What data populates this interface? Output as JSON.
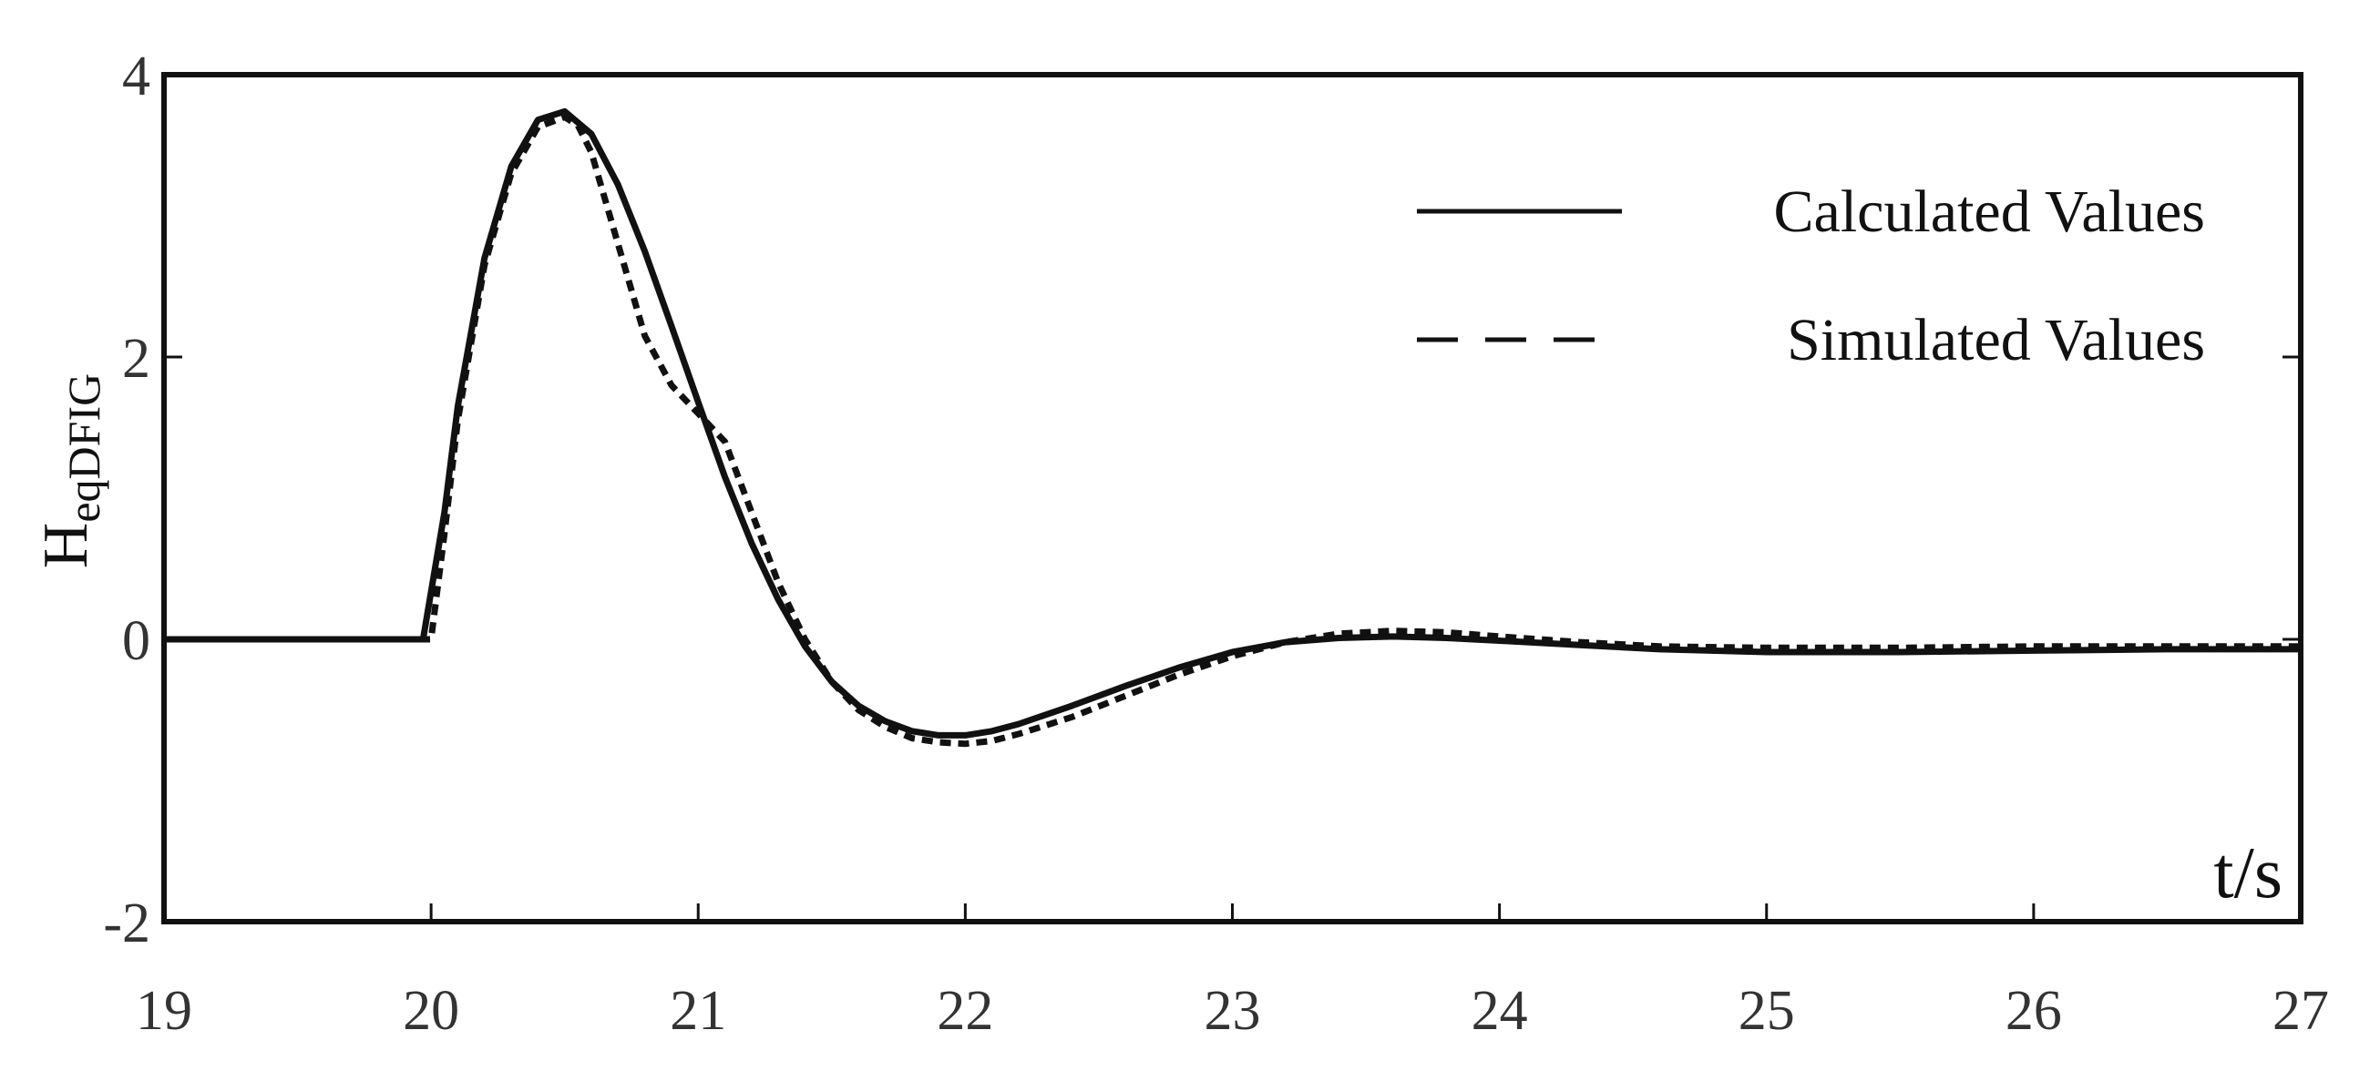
{
  "chart_data": {
    "type": "line",
    "title": "",
    "xlabel": "t/s",
    "ylabel": {
      "main": "H",
      "subscript": "eqDFIG"
    },
    "xlim": [
      19,
      27
    ],
    "ylim": [
      -2,
      4
    ],
    "xticks": [
      "19",
      "20",
      "21",
      "22",
      "23",
      "24",
      "25",
      "26",
      "27"
    ],
    "yticks": [
      "-2",
      "0",
      "2",
      "4"
    ],
    "grid": false,
    "legend_position": "top-right",
    "series": [
      {
        "name": "Calculated Values",
        "style": "solid",
        "color": "#111111",
        "x": [
          19.0,
          19.5,
          19.97,
          20.05,
          20.1,
          20.2,
          20.3,
          20.4,
          20.5,
          20.6,
          20.7,
          20.8,
          20.9,
          21.0,
          21.1,
          21.2,
          21.3,
          21.4,
          21.5,
          21.6,
          21.7,
          21.8,
          21.9,
          22.0,
          22.1,
          22.2,
          22.4,
          22.6,
          22.8,
          23.0,
          23.2,
          23.4,
          23.6,
          23.8,
          24.0,
          24.3,
          24.6,
          25.0,
          25.5,
          26.0,
          26.5,
          27.0
        ],
        "y": [
          0.0,
          0.0,
          0.0,
          0.9,
          1.65,
          2.7,
          3.35,
          3.68,
          3.74,
          3.58,
          3.22,
          2.75,
          2.22,
          1.68,
          1.15,
          0.68,
          0.28,
          -0.05,
          -0.3,
          -0.47,
          -0.58,
          -0.65,
          -0.68,
          -0.68,
          -0.65,
          -0.6,
          -0.47,
          -0.33,
          -0.2,
          -0.09,
          -0.02,
          0.01,
          0.02,
          0.01,
          -0.01,
          -0.04,
          -0.07,
          -0.09,
          -0.09,
          -0.08,
          -0.07,
          -0.07
        ]
      },
      {
        "name": "Simulated Values",
        "style": "dashed",
        "color": "#111111",
        "x": [
          19.0,
          19.5,
          20.0,
          20.05,
          20.1,
          20.2,
          20.3,
          20.4,
          20.5,
          20.55,
          20.6,
          20.7,
          20.8,
          20.9,
          21.0,
          21.1,
          21.2,
          21.3,
          21.4,
          21.5,
          21.6,
          21.7,
          21.8,
          21.9,
          22.0,
          22.1,
          22.2,
          22.4,
          22.6,
          22.8,
          23.0,
          23.2,
          23.4,
          23.6,
          23.8,
          24.0,
          24.3,
          24.6,
          25.0,
          25.5,
          26.0,
          26.5,
          27.0
        ],
        "y": [
          0.0,
          0.0,
          0.0,
          0.75,
          1.55,
          2.65,
          3.3,
          3.63,
          3.7,
          3.64,
          3.45,
          2.8,
          2.15,
          1.8,
          1.6,
          1.4,
          0.9,
          0.4,
          0.0,
          -0.3,
          -0.5,
          -0.62,
          -0.7,
          -0.73,
          -0.74,
          -0.72,
          -0.67,
          -0.55,
          -0.4,
          -0.25,
          -0.12,
          -0.02,
          0.04,
          0.06,
          0.05,
          0.02,
          -0.02,
          -0.05,
          -0.06,
          -0.06,
          -0.05,
          -0.05,
          -0.05
        ]
      }
    ]
  }
}
